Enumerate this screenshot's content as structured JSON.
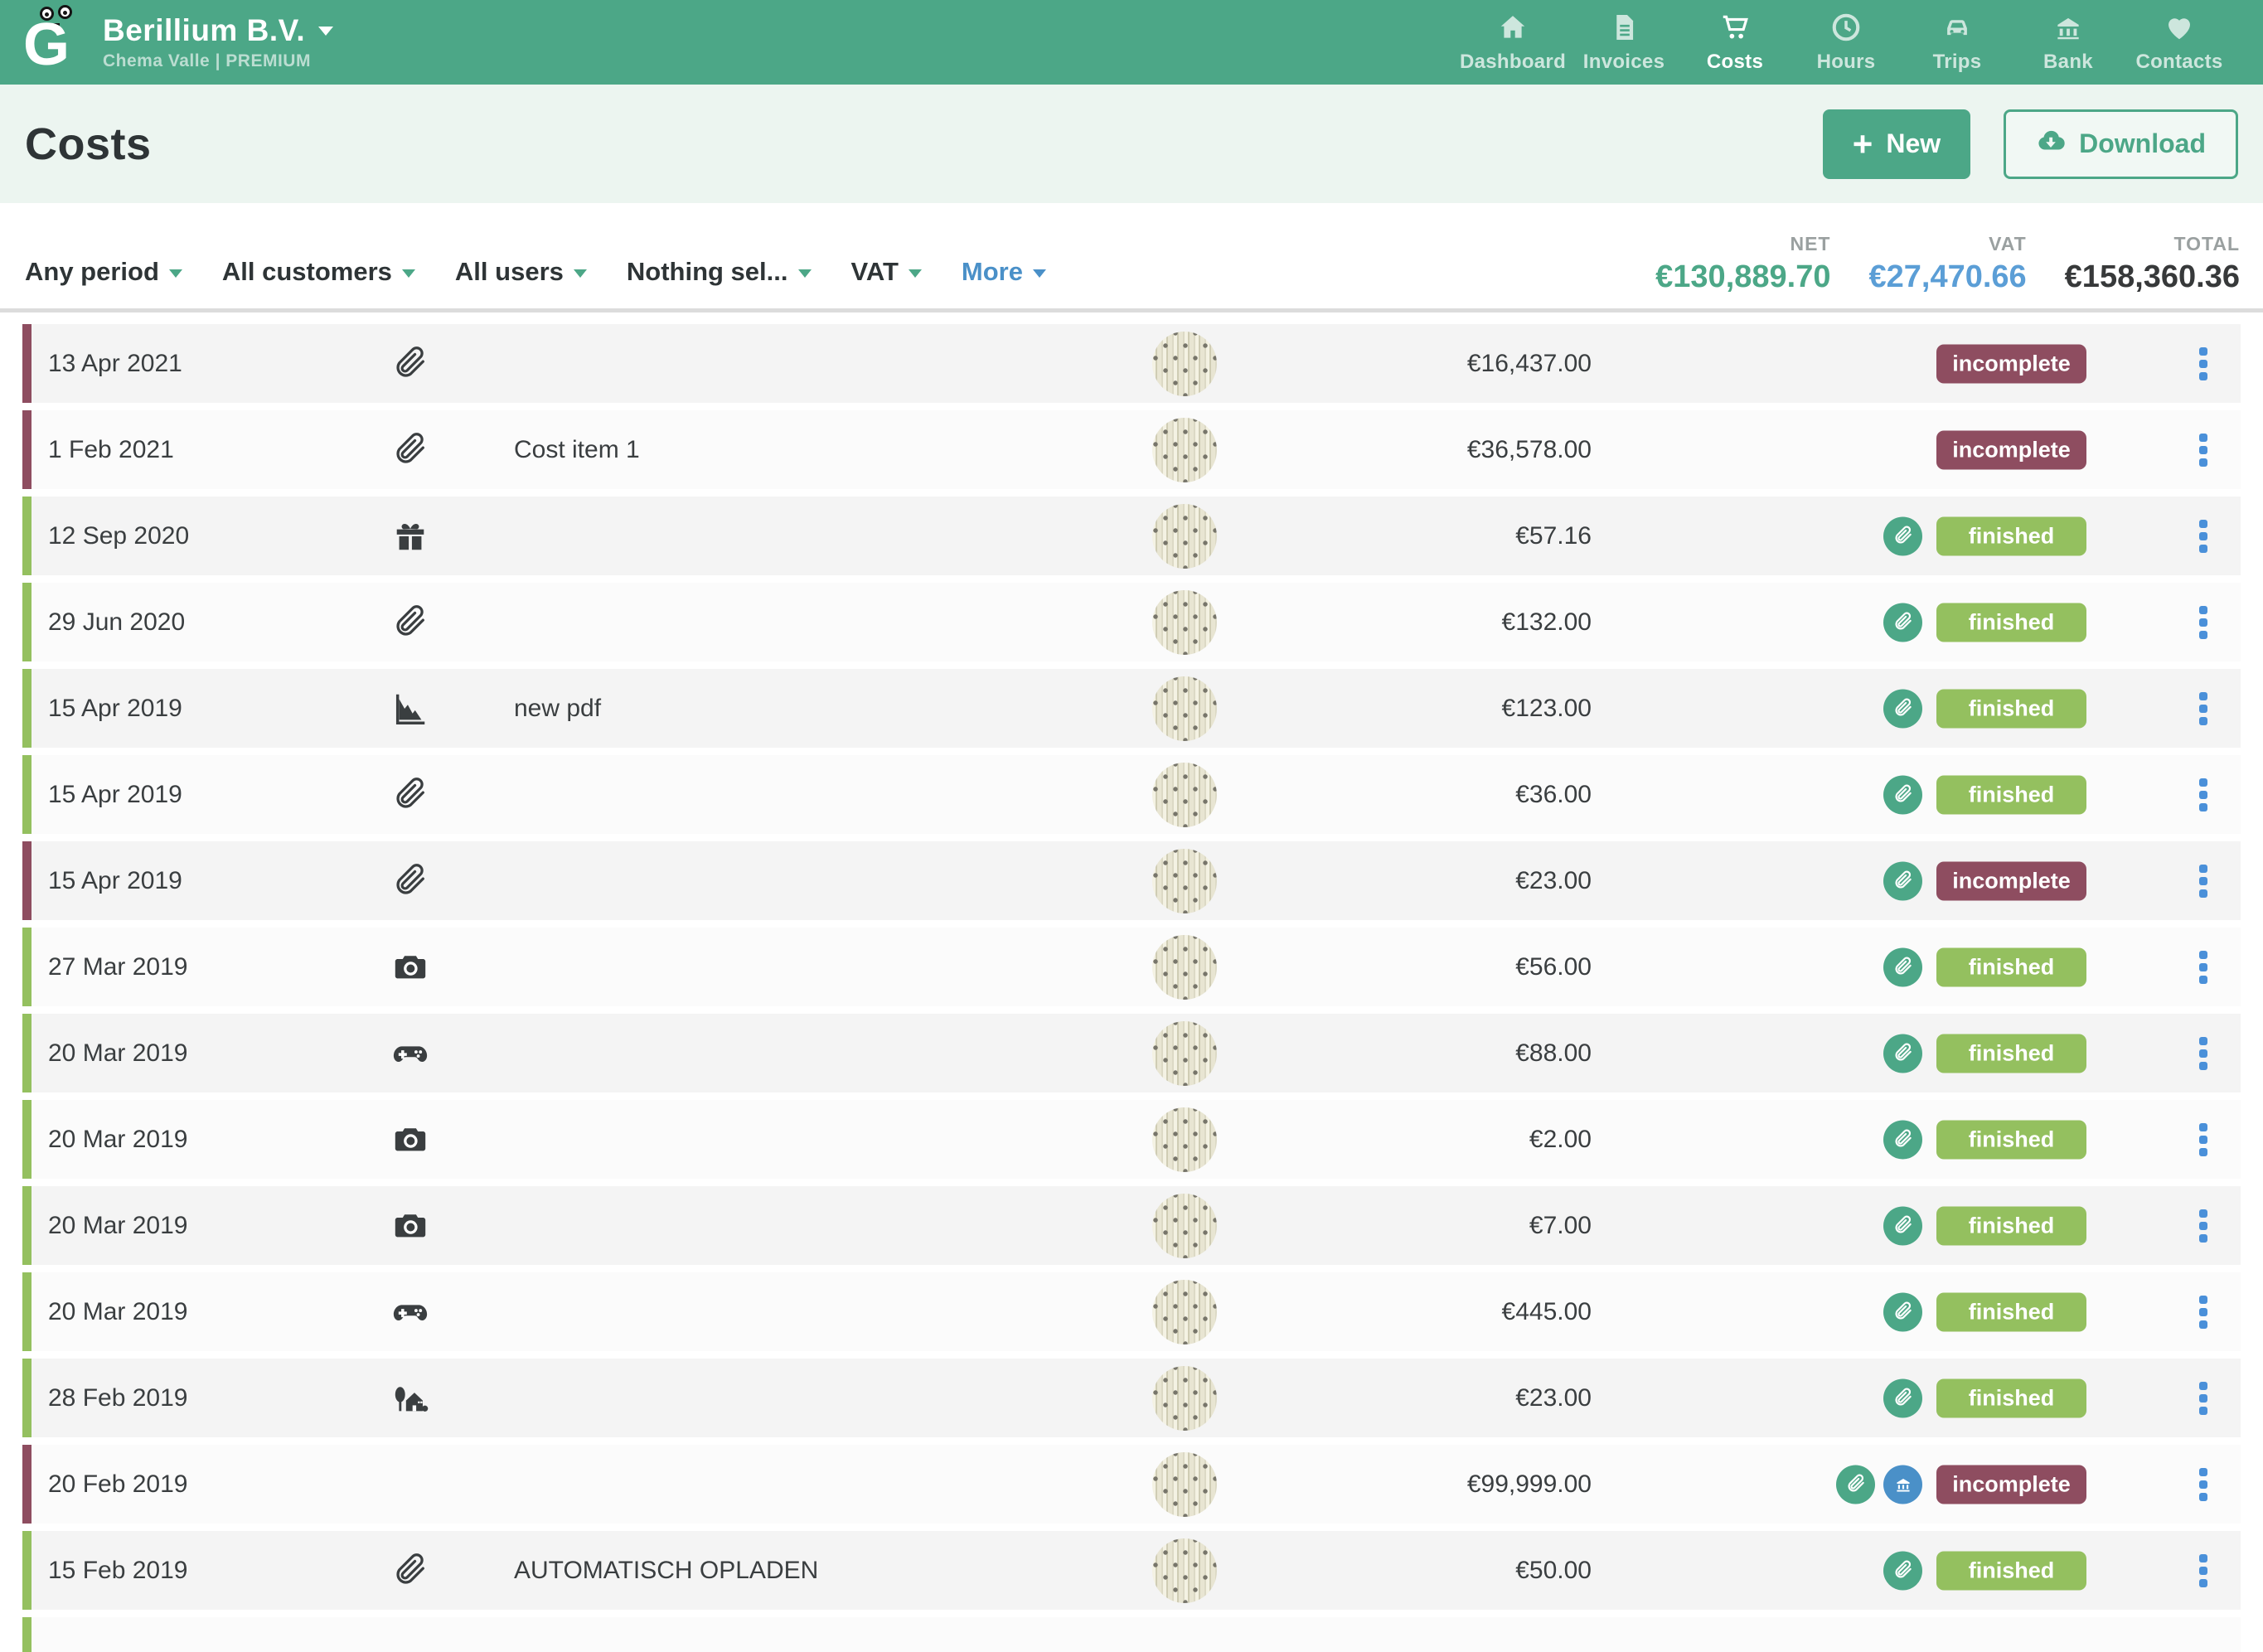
{
  "header": {
    "company": "Berillium B.V.",
    "subtitle": "Chema Valle | PREMIUM",
    "logo_letter": "G",
    "nav": [
      {
        "label": "Dashboard",
        "icon": "home",
        "active": false
      },
      {
        "label": "Invoices",
        "icon": "invoice",
        "active": false
      },
      {
        "label": "Costs",
        "icon": "cart",
        "active": true
      },
      {
        "label": "Hours",
        "icon": "clock",
        "active": false
      },
      {
        "label": "Trips",
        "icon": "car",
        "active": false
      },
      {
        "label": "Bank",
        "icon": "bank",
        "active": false
      },
      {
        "label": "Contacts",
        "icon": "heart",
        "active": false
      }
    ]
  },
  "page": {
    "title": "Costs",
    "new_button": "New",
    "download_button": "Download"
  },
  "filters": [
    {
      "label": "Any period",
      "style": "default"
    },
    {
      "label": "All customers",
      "style": "default"
    },
    {
      "label": "All users",
      "style": "default"
    },
    {
      "label": "Nothing sel...",
      "style": "default"
    },
    {
      "label": "VAT",
      "style": "default"
    },
    {
      "label": "More",
      "style": "link"
    }
  ],
  "totals": {
    "net_label": "NET",
    "net_value": "€130,889.70",
    "vat_label": "VAT",
    "vat_value": "€27,470.66",
    "total_label": "TOTAL",
    "total_value": "€158,360.36"
  },
  "colors": {
    "accent_green": "#4ca787",
    "status_incomplete": "#8e4d60",
    "status_finished": "#94c05f",
    "link_blue": "#4a90c8",
    "vat_blue": "#5b9ed6"
  },
  "rows": [
    {
      "date": "13 Apr 2021",
      "icon": "paperclip",
      "description": "",
      "amount": "€16,437.00",
      "attachment_badge": false,
      "bank_badge": false,
      "status": "incomplete"
    },
    {
      "date": "1 Feb 2021",
      "icon": "paperclip",
      "description": "Cost item 1",
      "amount": "€36,578.00",
      "attachment_badge": false,
      "bank_badge": false,
      "status": "incomplete"
    },
    {
      "date": "12 Sep 2020",
      "icon": "gift",
      "description": "",
      "amount": "€57.16",
      "attachment_badge": true,
      "bank_badge": false,
      "status": "finished"
    },
    {
      "date": "29 Jun 2020",
      "icon": "paperclip",
      "description": "",
      "amount": "€132.00",
      "attachment_badge": true,
      "bank_badge": false,
      "status": "finished"
    },
    {
      "date": "15 Apr 2019",
      "icon": "chart-down",
      "description": "new pdf",
      "amount": "€123.00",
      "attachment_badge": true,
      "bank_badge": false,
      "status": "finished"
    },
    {
      "date": "15 Apr 2019",
      "icon": "paperclip",
      "description": "",
      "amount": "€36.00",
      "attachment_badge": true,
      "bank_badge": false,
      "status": "finished"
    },
    {
      "date": "15 Apr 2019",
      "icon": "paperclip",
      "description": "",
      "amount": "€23.00",
      "attachment_badge": true,
      "bank_badge": false,
      "status": "incomplete"
    },
    {
      "date": "27 Mar 2019",
      "icon": "camera",
      "description": "",
      "amount": "€56.00",
      "attachment_badge": true,
      "bank_badge": false,
      "status": "finished"
    },
    {
      "date": "20 Mar 2019",
      "icon": "controller",
      "description": "",
      "amount": "€88.00",
      "attachment_badge": true,
      "bank_badge": false,
      "status": "finished"
    },
    {
      "date": "20 Mar 2019",
      "icon": "camera",
      "description": "",
      "amount": "€2.00",
      "attachment_badge": true,
      "bank_badge": false,
      "status": "finished"
    },
    {
      "date": "20 Mar 2019",
      "icon": "camera",
      "description": "",
      "amount": "€7.00",
      "attachment_badge": true,
      "bank_badge": false,
      "status": "finished"
    },
    {
      "date": "20 Mar 2019",
      "icon": "controller",
      "description": "",
      "amount": "€445.00",
      "attachment_badge": true,
      "bank_badge": false,
      "status": "finished"
    },
    {
      "date": "28 Feb 2019",
      "icon": "house",
      "description": "",
      "amount": "€23.00",
      "attachment_badge": true,
      "bank_badge": false,
      "status": "finished"
    },
    {
      "date": "20 Feb 2019",
      "icon": "",
      "description": "",
      "amount": "€99,999.00",
      "attachment_badge": true,
      "bank_badge": true,
      "status": "incomplete"
    },
    {
      "date": "15 Feb 2019",
      "icon": "paperclip",
      "description": "AUTOMATISCH OPLADEN",
      "amount": "€50.00",
      "attachment_badge": true,
      "bank_badge": false,
      "status": "finished"
    }
  ]
}
